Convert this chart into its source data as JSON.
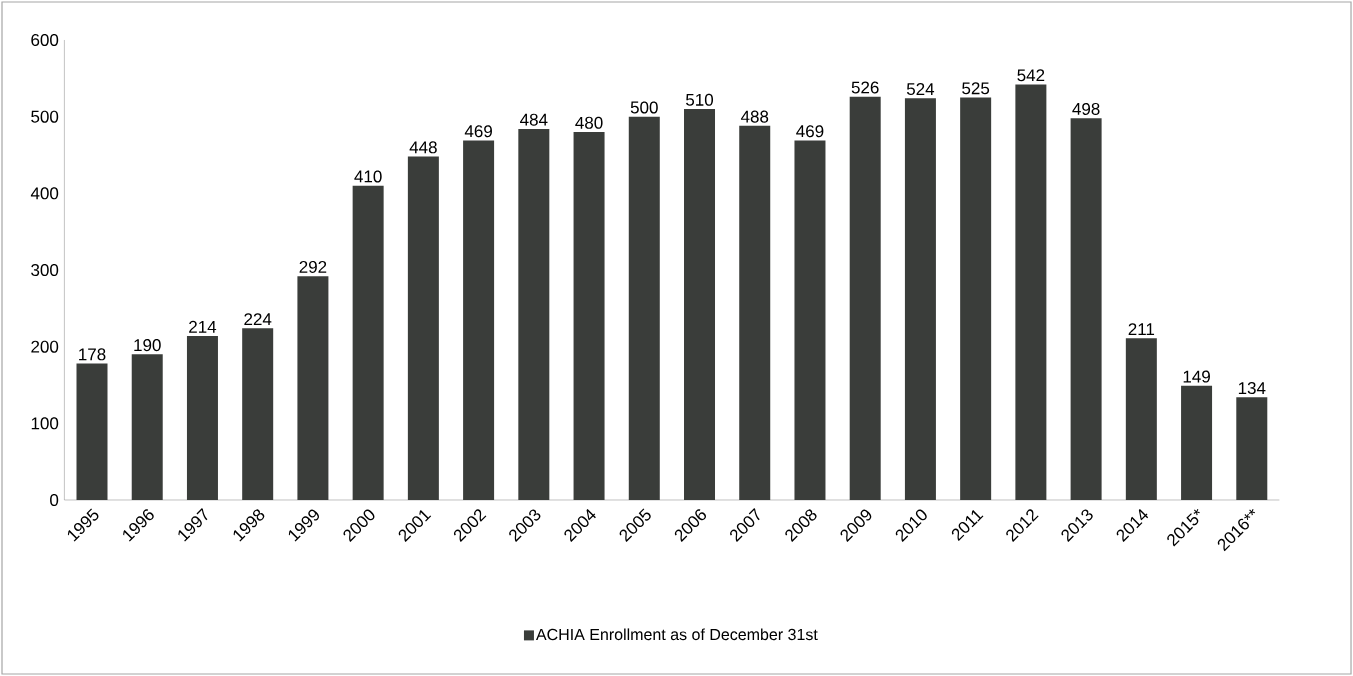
{
  "chart_data": {
    "type": "bar",
    "categories": [
      "1995",
      "1996",
      "1997",
      "1998",
      "1999",
      "2000",
      "2001",
      "2002",
      "2003",
      "2004",
      "2005",
      "2006",
      "2007",
      "2008",
      "2009",
      "2010",
      "2011",
      "2012",
      "2013",
      "2014",
      "2015*",
      "2016**"
    ],
    "series": [
      {
        "name": "ACHIA Enrollment as of December 31st",
        "color": "#3a3d3a",
        "values": [
          178,
          190,
          214,
          224,
          292,
          410,
          448,
          469,
          484,
          480,
          500,
          510,
          488,
          469,
          526,
          524,
          525,
          542,
          498,
          211,
          149,
          134
        ]
      }
    ],
    "ylim": [
      0,
      600
    ],
    "yticks": [
      0,
      100,
      200,
      300,
      400,
      500,
      600
    ],
    "data_labels": true,
    "legend": "bottom",
    "grid": false
  }
}
